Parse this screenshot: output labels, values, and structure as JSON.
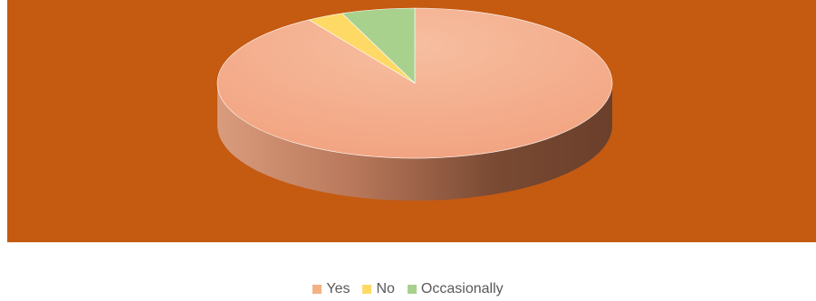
{
  "chart_data": {
    "type": "pie",
    "title": "",
    "style": "3d",
    "plot_background": "#C55A11",
    "slices": [
      {
        "label": "Yes",
        "value": 91,
        "color": "#F4B183"
      },
      {
        "label": "No",
        "value": 3,
        "color": "#FFD966"
      },
      {
        "label": "Occasionally",
        "value": 6,
        "color": "#A9D18E"
      }
    ],
    "legend": {
      "position": "bottom"
    }
  }
}
